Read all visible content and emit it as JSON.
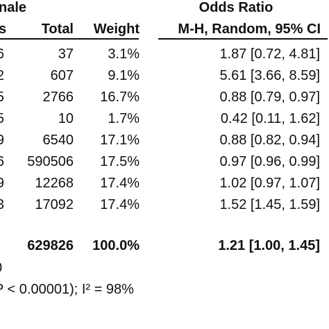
{
  "header": {
    "female_fragment": "nale",
    "odds_ratio_title": "Odds Ratio",
    "events_fragment": "s",
    "total_label": "Total",
    "weight_label": "Weight",
    "method_label": "M-H, Random, 95% CI"
  },
  "rows": [
    {
      "events_fragment": "6",
      "total": "37",
      "weight": "3.1%",
      "or": "1.87 [0.72, 4.81]"
    },
    {
      "events_fragment": "2",
      "total": "607",
      "weight": "9.1%",
      "or": "5.61 [3.66, 8.59]"
    },
    {
      "events_fragment": "5",
      "total": "2766",
      "weight": "16.7%",
      "or": "0.88 [0.79, 0.97]"
    },
    {
      "events_fragment": "5",
      "total": "10",
      "weight": "1.7%",
      "or": "0.42 [0.11, 1.62]"
    },
    {
      "events_fragment": "9",
      "total": "6540",
      "weight": "17.1%",
      "or": "0.88 [0.82, 0.94]"
    },
    {
      "events_fragment": "6",
      "total": "590506",
      "weight": "17.5%",
      "or": "0.97 [0.96, 0.99]"
    },
    {
      "events_fragment": "9",
      "total": "12268",
      "weight": "17.4%",
      "or": "1.02 [0.97, 1.07]"
    },
    {
      "events_fragment": "3",
      "total": "17092",
      "weight": "17.4%",
      "or": "1.52 [1.45, 1.59]"
    }
  ],
  "total_row": {
    "total": "629826",
    "weight": "100.0%",
    "or": "1.21 [1.00, 1.45]"
  },
  "footer": {
    "line1_fragment": "0",
    "line2_fragment": "P < 0.00001); I² = 98%"
  }
}
